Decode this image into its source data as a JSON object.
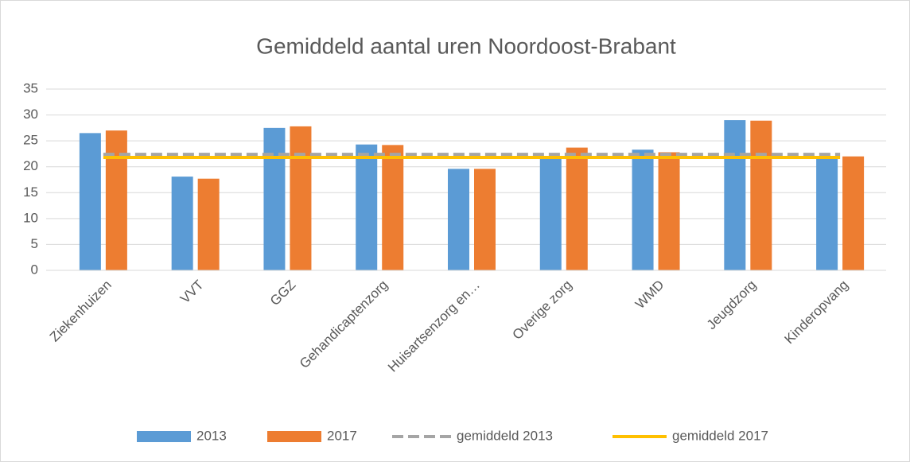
{
  "chart_data": {
    "type": "bar",
    "title": "Gemiddeld aantal uren Noordoost-Brabant",
    "categories": [
      "Ziekenhuizen",
      "VVT",
      "GGZ",
      "Gehandicaptenzorg",
      "Huisartsenzorg en…",
      "Overige zorg",
      "WMD",
      "Jeugdzorg",
      "Kinderopvang"
    ],
    "series": [
      {
        "name": "2013",
        "type": "bar",
        "color": "#5b9bd5",
        "values": [
          26.5,
          18.1,
          27.5,
          24.3,
          19.6,
          21.8,
          23.3,
          29,
          22
        ]
      },
      {
        "name": "2017",
        "type": "bar",
        "color": "#ed7d31",
        "values": [
          27,
          17.7,
          27.8,
          24.2,
          19.6,
          23.7,
          22.8,
          28.9,
          22
        ]
      },
      {
        "name": "gemiddeld 2013",
        "type": "line",
        "dashed": true,
        "color": "#a5a5a5",
        "values": [
          22.4,
          22.4,
          22.4,
          22.4,
          22.4,
          22.4,
          22.4,
          22.4,
          22.4
        ]
      },
      {
        "name": "gemiddeld 2017",
        "type": "line",
        "color": "#ffc000",
        "values": [
          21.8,
          21.8,
          21.8,
          21.8,
          21.8,
          21.8,
          21.8,
          21.8,
          21.8
        ]
      }
    ],
    "ylim": [
      0,
      35
    ],
    "yticks": [
      0,
      5,
      10,
      15,
      20,
      25,
      30,
      35
    ],
    "grid": true,
    "legend": "bottom"
  }
}
